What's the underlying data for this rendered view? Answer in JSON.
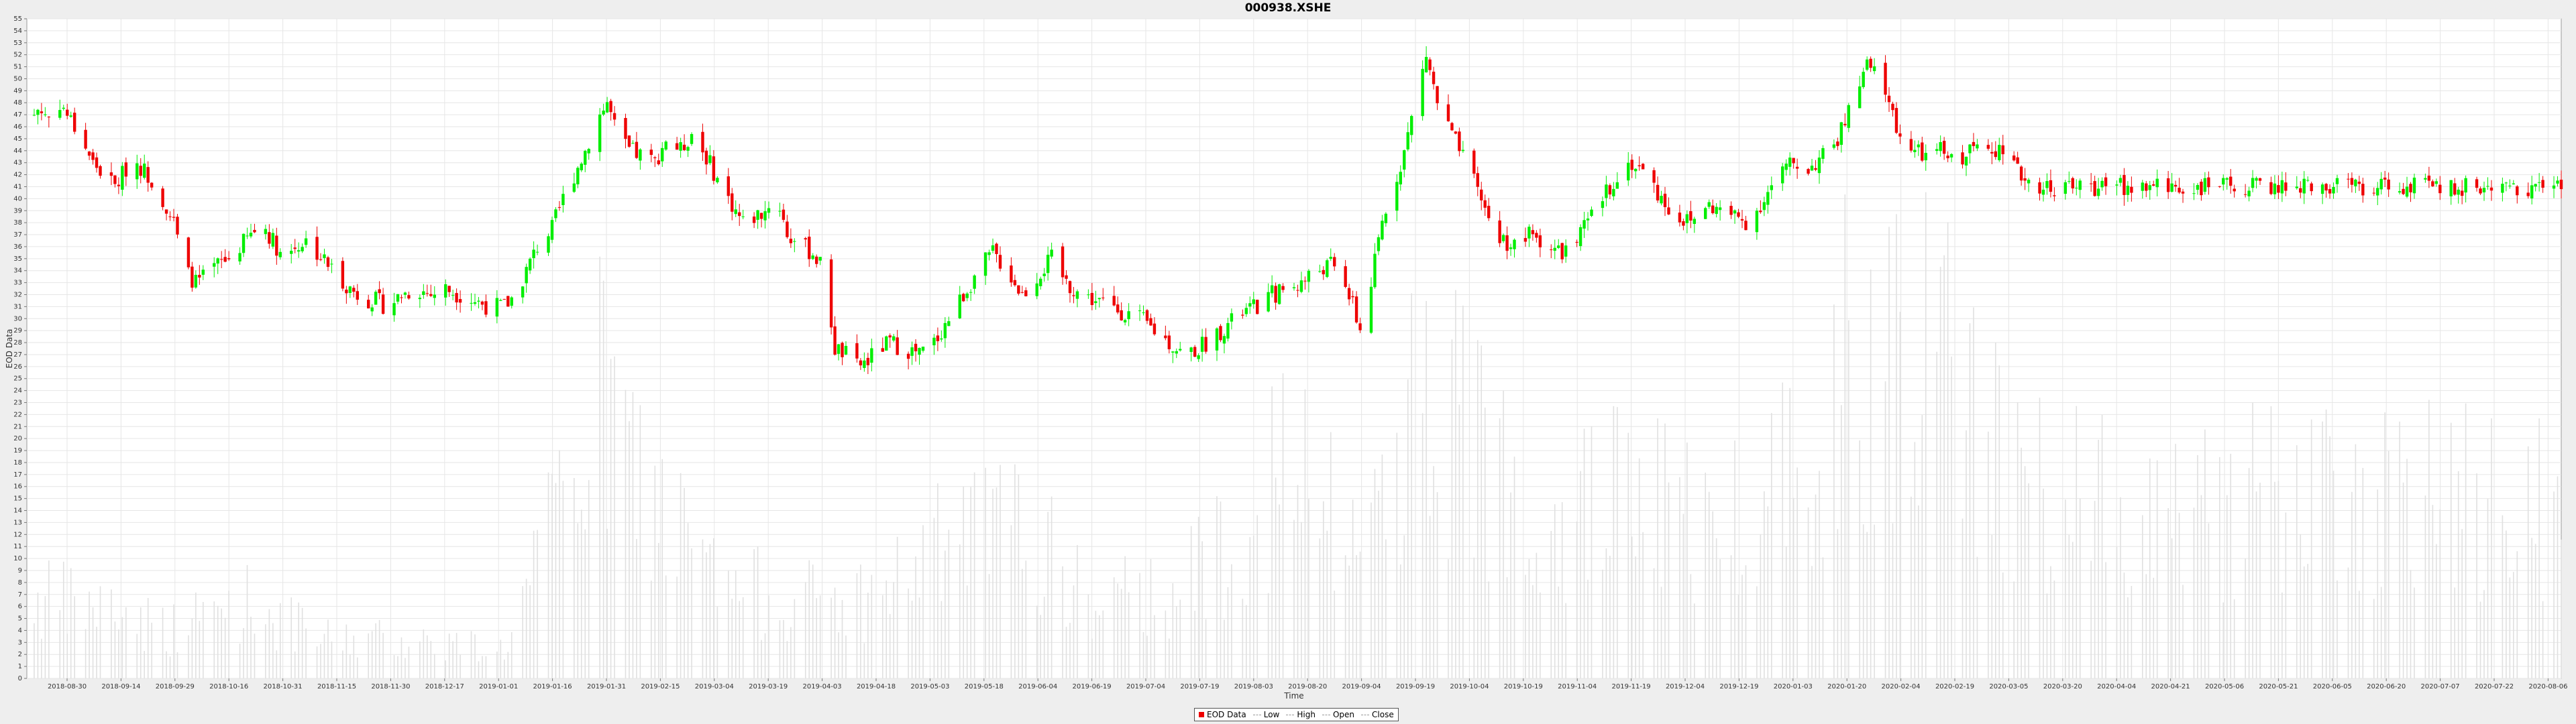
{
  "chart_data": {
    "type": "candlestick",
    "title": "000938.XSHE",
    "xlabel": "Time",
    "ylabel": "EOD Data",
    "ylim": [
      0,
      55
    ],
    "yticks": [
      0,
      1,
      2,
      3,
      4,
      5,
      6,
      7,
      8,
      9,
      10,
      11,
      12,
      13,
      14,
      15,
      16,
      17,
      18,
      19,
      20,
      21,
      22,
      23,
      24,
      25,
      26,
      27,
      28,
      29,
      30,
      31,
      32,
      33,
      34,
      35,
      36,
      37,
      38,
      39,
      40,
      41,
      42,
      43,
      44,
      45,
      46,
      47,
      48,
      49,
      50,
      51,
      52,
      53,
      54,
      55
    ],
    "xlim": [
      "2018-09-22",
      "2020-08-12"
    ],
    "xticks": [
      "2018-08-30",
      "2018-09-14",
      "2018-09-29",
      "2018-10-16",
      "2018-10-31",
      "2018-11-15",
      "2018-11-30",
      "2018-12-17",
      "2019-01-01",
      "2019-01-16",
      "2019-01-31",
      "2019-02-15",
      "2019-03-04",
      "2019-03-19",
      "2019-04-03",
      "2019-04-18",
      "2019-05-03",
      "2019-05-18",
      "2019-06-04",
      "2019-06-19",
      "2019-07-04",
      "2019-07-19",
      "2019-08-03",
      "2019-08-20",
      "2019-09-04",
      "2019-09-19",
      "2019-10-04",
      "2019-10-19",
      "2019-11-04",
      "2019-11-19",
      "2019-12-04",
      "2019-12-19",
      "2020-01-03",
      "2020-01-20",
      "2020-02-04",
      "2020-02-19",
      "2020-03-05",
      "2020-03-20",
      "2020-04-04",
      "2020-04-21",
      "2020-05-06",
      "2020-05-21",
      "2020-06-05",
      "2020-06-20",
      "2020-07-07",
      "2020-07-22",
      "2020-08-06"
    ],
    "grid": true,
    "legend": [
      "EOD Data",
      "Low",
      "High",
      "Open",
      "Close"
    ],
    "legend_position": "bottom",
    "colors": {
      "up": "#00ee00",
      "down": "#ee0000",
      "volume": "#e0e0e0",
      "grid": "#e6e6e6",
      "plot_bg": "#ffffff"
    },
    "close_path": [
      [
        "2018-09-22",
        46.0
      ],
      [
        "2018-09-25",
        47.5
      ],
      [
        "2018-09-28",
        46.8
      ],
      [
        "2018-10-01",
        48.0
      ],
      [
        "2018-10-04",
        46.5
      ],
      [
        "2018-10-07",
        45.0
      ],
      [
        "2018-10-10",
        43.0
      ],
      [
        "2018-10-13",
        42.0
      ],
      [
        "2018-10-16",
        41.0
      ],
      [
        "2018-10-19",
        42.5
      ],
      [
        "2018-10-22",
        43.0
      ],
      [
        "2018-10-25",
        42.0
      ],
      [
        "2018-10-29",
        40.0
      ],
      [
        "2018-11-01",
        38.0
      ],
      [
        "2018-11-04",
        34.0
      ],
      [
        "2018-11-07",
        33.0
      ],
      [
        "2018-11-10",
        33.5
      ],
      [
        "2018-11-13",
        34.5
      ],
      [
        "2018-11-16",
        35.0
      ],
      [
        "2018-11-19",
        36.0
      ],
      [
        "2018-11-22",
        37.0
      ],
      [
        "2018-11-25",
        38.0
      ],
      [
        "2018-11-28",
        36.5
      ],
      [
        "2018-12-01",
        35.0
      ],
      [
        "2018-12-04",
        36.0
      ],
      [
        "2018-12-07",
        36.5
      ],
      [
        "2018-12-10",
        35.5
      ],
      [
        "2018-12-13",
        34.5
      ],
      [
        "2018-12-16",
        33.5
      ],
      [
        "2018-12-19",
        32.5
      ],
      [
        "2018-12-22",
        31.8
      ],
      [
        "2018-12-26",
        31.5
      ],
      [
        "2018-12-29",
        31.0
      ],
      [
        "2019-01-02",
        32.0
      ],
      [
        "2019-01-06",
        32.5
      ],
      [
        "2019-01-10",
        32.0
      ],
      [
        "2019-01-14",
        32.5
      ],
      [
        "2019-01-18",
        32.0
      ],
      [
        "2019-01-22",
        31.5
      ],
      [
        "2019-01-26",
        31.0
      ],
      [
        "2019-01-30",
        31.0
      ],
      [
        "2019-02-02",
        32.0
      ],
      [
        "2019-02-05",
        34.0
      ],
      [
        "2019-02-08",
        36.0
      ],
      [
        "2019-02-12",
        37.5
      ],
      [
        "2019-02-15",
        40.0
      ],
      [
        "2019-02-18",
        42.0
      ],
      [
        "2019-02-21",
        44.0
      ],
      [
        "2019-02-24",
        46.5
      ],
      [
        "2019-02-27",
        48.0
      ],
      [
        "2019-03-02",
        45.0
      ],
      [
        "2019-03-05",
        44.0
      ],
      [
        "2019-03-09",
        43.5
      ],
      [
        "2019-03-12",
        43.0
      ],
      [
        "2019-03-15",
        45.0
      ],
      [
        "2019-03-19",
        44.0
      ],
      [
        "2019-03-22",
        45.5
      ],
      [
        "2019-03-26",
        43.5
      ],
      [
        "2019-03-30",
        41.0
      ],
      [
        "2019-04-03",
        39.0
      ],
      [
        "2019-04-05",
        38.0
      ],
      [
        "2019-04-08",
        38.5
      ],
      [
        "2019-04-11",
        39.0
      ],
      [
        "2019-04-14",
        40.5
      ],
      [
        "2019-04-17",
        37.0
      ],
      [
        "2019-04-21",
        36.0
      ],
      [
        "2019-04-24",
        35.5
      ],
      [
        "2019-04-27",
        34.0
      ],
      [
        "2019-04-30",
        27.5
      ],
      [
        "2019-05-03",
        27.0
      ],
      [
        "2019-05-06",
        26.0
      ],
      [
        "2019-05-09",
        26.5
      ],
      [
        "2019-05-12",
        27.5
      ],
      [
        "2019-05-15",
        28.0
      ],
      [
        "2019-05-19",
        27.5
      ],
      [
        "2019-05-23",
        27.0
      ],
      [
        "2019-05-27",
        28.0
      ],
      [
        "2019-05-31",
        30.0
      ],
      [
        "2019-06-04",
        32.0
      ],
      [
        "2019-06-08",
        34.0
      ],
      [
        "2019-06-12",
        35.5
      ],
      [
        "2019-06-16",
        34.0
      ],
      [
        "2019-06-20",
        32.0
      ],
      [
        "2019-06-24",
        33.5
      ],
      [
        "2019-06-28",
        35.0
      ],
      [
        "2019-07-02",
        33.0
      ],
      [
        "2019-07-06",
        32.0
      ],
      [
        "2019-07-10",
        31.5
      ],
      [
        "2019-07-14",
        31.0
      ],
      [
        "2019-07-18",
        30.5
      ],
      [
        "2019-07-22",
        30.0
      ],
      [
        "2019-07-26",
        29.0
      ],
      [
        "2019-07-30",
        28.0
      ],
      [
        "2019-08-03",
        27.0
      ],
      [
        "2019-08-07",
        27.5
      ],
      [
        "2019-08-11",
        28.5
      ],
      [
        "2019-08-15",
        29.5
      ],
      [
        "2019-08-19",
        30.5
      ],
      [
        "2019-08-23",
        31.0
      ],
      [
        "2019-08-27",
        32.0
      ],
      [
        "2019-08-31",
        32.5
      ],
      [
        "2019-09-04",
        33.0
      ],
      [
        "2019-09-08",
        34.0
      ],
      [
        "2019-09-12",
        34.5
      ],
      [
        "2019-09-16",
        33.0
      ],
      [
        "2019-09-20",
        29.0
      ],
      [
        "2019-09-23",
        33.0
      ],
      [
        "2019-09-26",
        38.0
      ],
      [
        "2019-09-29",
        41.0
      ],
      [
        "2019-10-02",
        44.0
      ],
      [
        "2019-10-05",
        48.0
      ],
      [
        "2019-10-08",
        52.0
      ],
      [
        "2019-10-11",
        48.0
      ],
      [
        "2019-10-14",
        46.0
      ],
      [
        "2019-10-17",
        44.0
      ],
      [
        "2019-10-20",
        42.0
      ],
      [
        "2019-10-23",
        40.0
      ],
      [
        "2019-10-26",
        37.5
      ],
      [
        "2019-10-29",
        36.5
      ],
      [
        "2019-11-02",
        36.0
      ],
      [
        "2019-11-05",
        37.0
      ],
      [
        "2019-11-09",
        36.5
      ],
      [
        "2019-11-13",
        35.5
      ],
      [
        "2019-11-17",
        36.0
      ],
      [
        "2019-11-21",
        38.0
      ],
      [
        "2019-11-25",
        40.0
      ],
      [
        "2019-11-29",
        42.0
      ],
      [
        "2019-12-03",
        43.0
      ],
      [
        "2019-12-07",
        42.0
      ],
      [
        "2019-12-11",
        40.0
      ],
      [
        "2019-12-15",
        38.5
      ],
      [
        "2019-12-19",
        38.0
      ],
      [
        "2019-12-23",
        39.5
      ],
      [
        "2019-12-27",
        39.0
      ],
      [
        "2019-12-31",
        38.5
      ],
      [
        "2020-01-04",
        38.0
      ],
      [
        "2020-01-08",
        40.0
      ],
      [
        "2020-01-12",
        42.0
      ],
      [
        "2020-01-16",
        43.0
      ],
      [
        "2020-01-20",
        42.5
      ],
      [
        "2020-01-24",
        43.5
      ],
      [
        "2020-01-28",
        45.0
      ],
      [
        "2020-02-01",
        48.0
      ],
      [
        "2020-02-05",
        51.0
      ],
      [
        "2020-02-09",
        50.0
      ],
      [
        "2020-02-13",
        46.0
      ],
      [
        "2020-02-17",
        44.0
      ],
      [
        "2020-02-21",
        43.5
      ],
      [
        "2020-02-25",
        44.0
      ],
      [
        "2020-02-29",
        43.0
      ],
      [
        "2020-03-04",
        44.0
      ],
      [
        "2020-03-08",
        45.0
      ],
      [
        "2020-03-12",
        44.0
      ],
      [
        "2020-03-16",
        42.5
      ],
      [
        "2020-03-20",
        41.5
      ],
      [
        "2020-03-24",
        41.0
      ]
    ],
    "volume_path": [
      [
        "2018-09-22",
        8
      ],
      [
        "2018-10-15",
        7
      ],
      [
        "2018-11-01",
        5
      ],
      [
        "2018-11-20",
        8
      ],
      [
        "2018-12-10",
        4
      ],
      [
        "2019-01-05",
        4
      ],
      [
        "2019-01-30",
        3
      ],
      [
        "2019-02-10",
        13
      ],
      [
        "2019-02-25",
        28
      ],
      [
        "2019-03-10",
        19
      ],
      [
        "2019-03-30",
        9
      ],
      [
        "2019-04-25",
        8
      ],
      [
        "2019-05-10",
        8
      ],
      [
        "2019-06-01",
        14
      ],
      [
        "2019-06-20",
        15
      ],
      [
        "2019-07-10",
        7
      ],
      [
        "2019-08-05",
        10
      ],
      [
        "2019-08-30",
        21
      ],
      [
        "2019-09-20",
        13
      ],
      [
        "2019-10-05",
        29
      ],
      [
        "2019-10-25",
        23
      ],
      [
        "2019-11-15",
        17
      ],
      [
        "2019-12-05",
        19
      ],
      [
        "2019-12-25",
        15
      ],
      [
        "2020-01-10",
        20
      ],
      [
        "2020-01-30",
        32
      ],
      [
        "2020-02-15",
        38
      ],
      [
        "2020-03-05",
        26
      ],
      [
        "2020-03-24",
        18
      ]
    ]
  }
}
